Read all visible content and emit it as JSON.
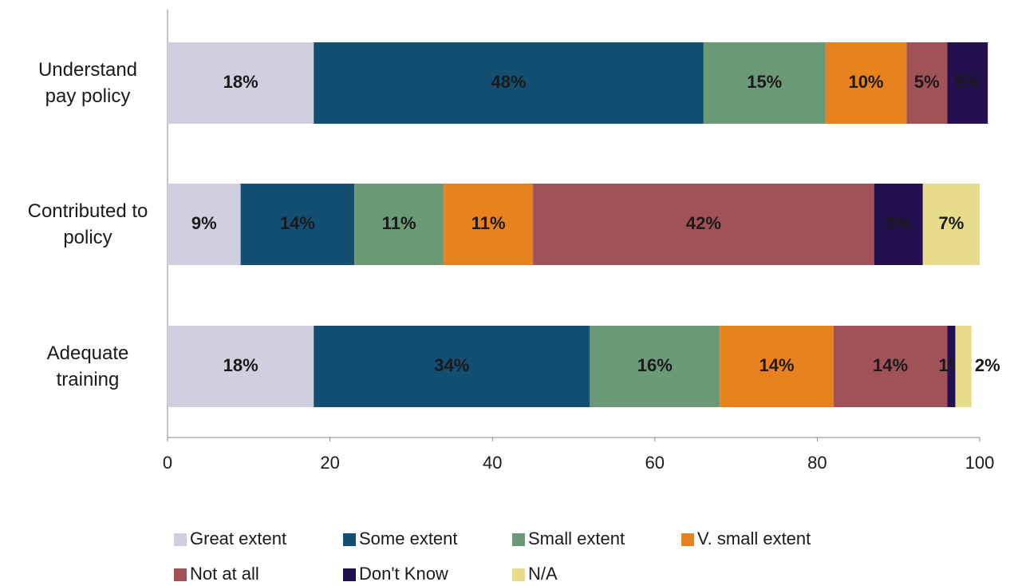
{
  "chart_data": {
    "type": "stacked-bar-horizontal",
    "categories": [
      "Understand pay policy",
      "Contributed to policy",
      "Adequate training"
    ],
    "xlim": [
      0,
      100
    ],
    "xticks": [
      0,
      20,
      40,
      60,
      80,
      100
    ],
    "grid": false,
    "legend": "bottom",
    "series": [
      {
        "name": "Great extent",
        "color": "#d0cfe0",
        "label_color": "#1a1a1a",
        "values": [
          18,
          9,
          18
        ],
        "value_labels": [
          "18%",
          "9%",
          "18%"
        ]
      },
      {
        "name": "Some extent",
        "color": "#134f73",
        "label_color": "#ffffff",
        "values": [
          48,
          14,
          34
        ],
        "value_labels": [
          "48%",
          "14%",
          "34%"
        ]
      },
      {
        "name": "Small extent",
        "color": "#6a9a76",
        "label_color": "#ffffff",
        "values": [
          15,
          11,
          16
        ],
        "value_labels": [
          "15%",
          "11%",
          "16%"
        ]
      },
      {
        "name": "V. small extent",
        "color": "#e8821e",
        "label_color": "#ffffff",
        "values": [
          10,
          11,
          14
        ],
        "value_labels": [
          "10%",
          "11%",
          "14%"
        ]
      },
      {
        "name": "Not at all",
        "color": "#a05257",
        "label_color": "#ffffff",
        "values": [
          5,
          42,
          14
        ],
        "value_labels": [
          "5%",
          "42%",
          "14%"
        ]
      },
      {
        "name": "Don't Know",
        "color": "#23104e",
        "label_color": "#ffffff",
        "values": [
          5,
          6,
          1
        ],
        "value_labels": [
          "5%",
          "6%",
          "1%"
        ]
      },
      {
        "name": "N/A",
        "color": "#e6dc8c",
        "label_color": "#1a1a1a",
        "values": [
          null,
          7,
          2
        ],
        "value_labels": [
          null,
          "7%",
          "2%"
        ]
      }
    ]
  }
}
